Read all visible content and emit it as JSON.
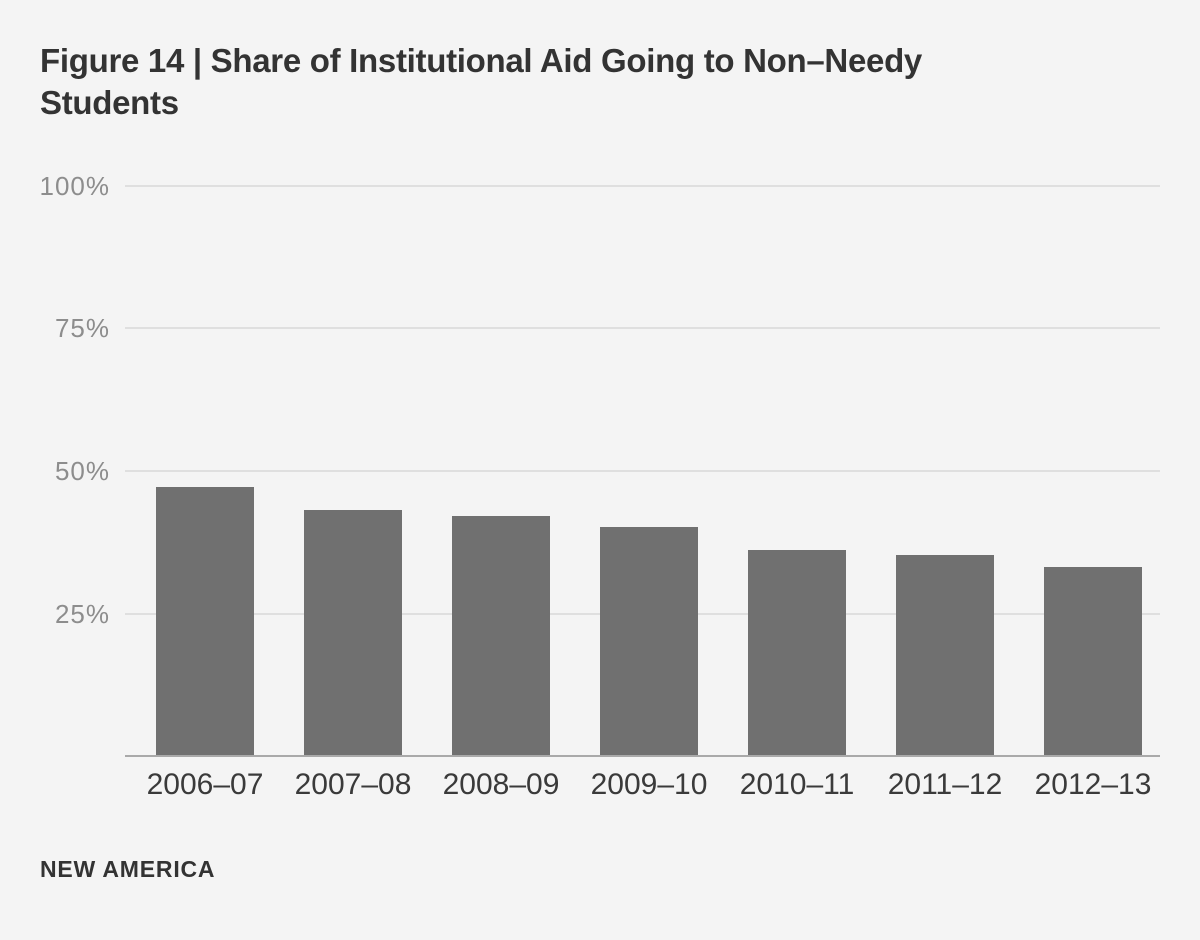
{
  "header": {
    "title": "Figure 14 | Share of Institutional Aid Going to Non–Needy Students",
    "title_line1": "Figure 14 | Share of Institutional Aid Going to Non–Needy",
    "title_line2": "Students"
  },
  "footer": {
    "brand": "NEW AMERICA"
  },
  "colors": {
    "background": "#f4f4f4",
    "bar": "#707070",
    "gridline": "#dfdfdf",
    "axis_line": "#a9a9a9",
    "title_text": "#333333",
    "y_tick_text": "#8d8d8d",
    "x_tick_text": "#3a3a3a"
  },
  "chart_data": {
    "type": "bar",
    "title": "Figure 14 | Share of Institutional Aid Going to Non–Needy Students",
    "categories": [
      "2006–07",
      "2007–08",
      "2008–09",
      "2009–10",
      "2010–11",
      "2011–12",
      "2012–13"
    ],
    "values": [
      47,
      43,
      42,
      40,
      36,
      35,
      33
    ],
    "value_unit": "percent",
    "xlabel": "",
    "ylabel": "",
    "ylim": [
      0,
      100
    ],
    "y_tick_labels": [
      "100%",
      "75%",
      "50%",
      "25%"
    ],
    "grid": "horizontal-only",
    "legend": "none",
    "bar_color": "#707070",
    "source": "NEW AMERICA"
  }
}
